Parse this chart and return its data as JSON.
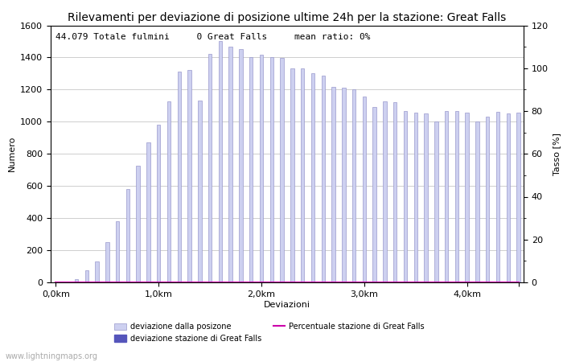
{
  "title": "Rilevamenti per deviazione di posizione ultime 24h per la stazione: Great Falls",
  "xlabel": "Deviazioni",
  "ylabel_left": "Numero",
  "ylabel_right": "Tasso [%]",
  "annotation": "44.079 Totale fulmini     0 Great Falls     mean ratio: 0%",
  "watermark": "www.lightningmaps.org",
  "bar_values": [
    0,
    5,
    20,
    75,
    130,
    250,
    380,
    580,
    725,
    870,
    980,
    1125,
    1310,
    1320,
    1130,
    1420,
    1500,
    1465,
    1450,
    1400,
    1415,
    1400,
    1395,
    1330,
    1330,
    1300,
    1285,
    1215,
    1210,
    1200,
    1155,
    1090,
    1125,
    1120,
    1065,
    1055,
    1050,
    1000,
    1065,
    1065,
    1055,
    1000,
    1030,
    1060,
    1050,
    1055
  ],
  "station_bar_values": [
    0,
    0,
    0,
    0,
    0,
    0,
    0,
    0,
    0,
    0,
    0,
    0,
    0,
    0,
    0,
    0,
    0,
    0,
    0,
    0,
    0,
    0,
    0,
    0,
    0,
    0,
    0,
    0,
    0,
    0,
    0,
    0,
    0,
    0,
    0,
    0,
    0,
    0,
    0,
    0,
    0,
    0,
    0,
    0,
    0,
    0
  ],
  "ratio_values": [
    0,
    0,
    0,
    0,
    0,
    0,
    0,
    0,
    0,
    0,
    0,
    0,
    0,
    0,
    0,
    0,
    0,
    0,
    0,
    0,
    0,
    0,
    0,
    0,
    0,
    0,
    0,
    0,
    0,
    0,
    0,
    0,
    0,
    0,
    0,
    0,
    0,
    0,
    0,
    0,
    0,
    0,
    0,
    0,
    0,
    0
  ],
  "n_bars": 46,
  "x_tick_positions": [
    0,
    10,
    20,
    30,
    40,
    45
  ],
  "x_tick_labels": [
    "0,0km",
    "1,0km",
    "2,0km",
    "3,0km",
    "4,0km",
    ""
  ],
  "ylim_left": [
    0,
    1600
  ],
  "ylim_right": [
    0,
    120
  ],
  "yticks_left": [
    0,
    200,
    400,
    600,
    800,
    1000,
    1200,
    1400,
    1600
  ],
  "yticks_right": [
    0,
    20,
    40,
    60,
    80,
    100,
    120
  ],
  "bar_color_light": "#cdd0f0",
  "bar_color_dark": "#5555bb",
  "bar_edge_color": "#9999cc",
  "ratio_line_color": "#cc00aa",
  "background_color": "#ffffff",
  "title_fontsize": 10,
  "label_fontsize": 8,
  "tick_fontsize": 8,
  "annotation_fontsize": 8
}
